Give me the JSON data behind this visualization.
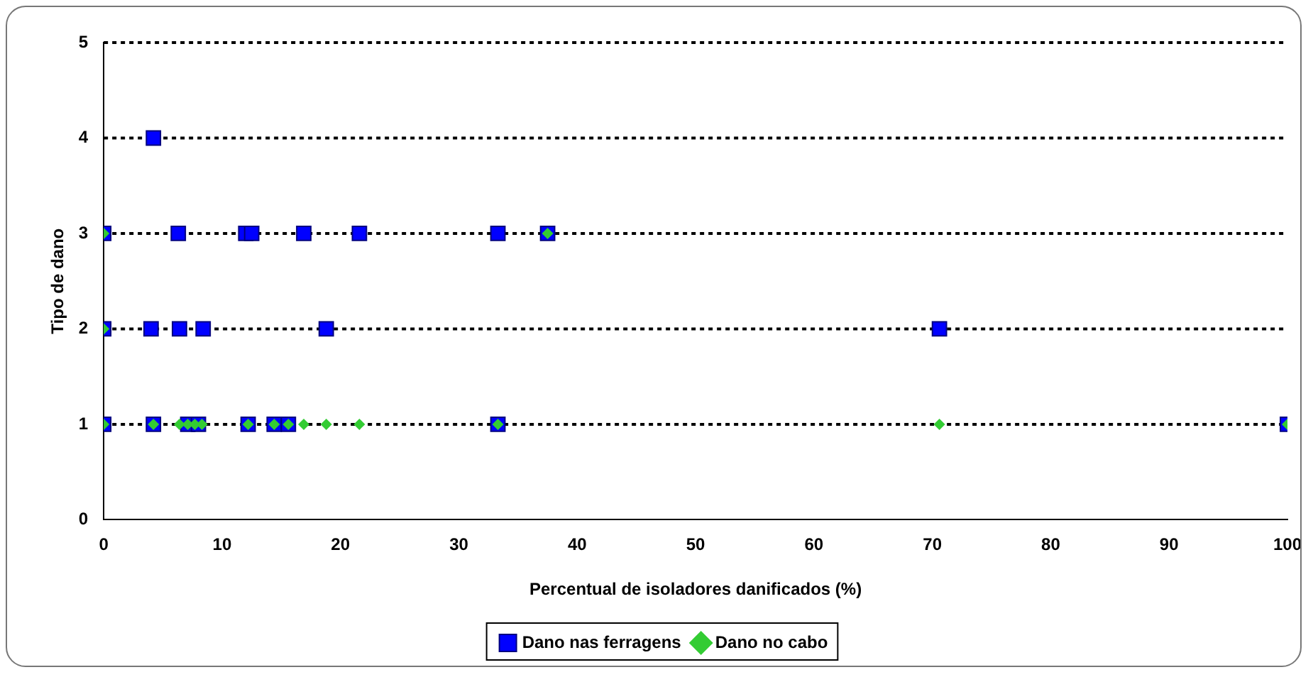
{
  "chart_data": {
    "type": "scatter",
    "xlabel": "Percentual de isoladores danificados (%)",
    "ylabel": "Tipo de dano",
    "xlim": [
      0,
      100
    ],
    "xticks": [
      0,
      10,
      20,
      30,
      40,
      50,
      60,
      70,
      80,
      90,
      100
    ],
    "ylim": [
      0,
      5
    ],
    "yticks": [
      0,
      1,
      2,
      3,
      4,
      5
    ],
    "grid": "y",
    "legend": "bottom",
    "series": [
      {
        "name": "Dano nas ferragens",
        "color": "#0000ff",
        "marker": "square",
        "x": [
          4.2,
          0,
          6.3,
          12,
          12.5,
          16.9,
          21.6,
          33.3,
          37.5,
          0,
          4,
          6.4,
          8.4,
          18.8,
          70.6,
          0,
          4.2,
          7.1,
          8,
          12.2,
          14.4,
          15.6,
          33.3,
          100
        ],
        "values": [
          4,
          3,
          3,
          3,
          3,
          3,
          3,
          3,
          3,
          2,
          2,
          2,
          2,
          2,
          2,
          1,
          1,
          1,
          1,
          1,
          1,
          1,
          1,
          1
        ]
      },
      {
        "name": "Dano no cabo",
        "color": "#33cc33",
        "marker": "diamond",
        "x": [
          0,
          37.5,
          0,
          0,
          4.2,
          6.4,
          7.1,
          7.7,
          8.3,
          12.2,
          14.4,
          15.6,
          16.9,
          18.8,
          21.6,
          33.3,
          70.6,
          100
        ],
        "values": [
          3,
          3,
          2,
          1,
          1,
          1,
          1,
          1,
          1,
          1,
          1,
          1,
          1,
          1,
          1,
          1,
          1,
          1
        ]
      }
    ]
  }
}
